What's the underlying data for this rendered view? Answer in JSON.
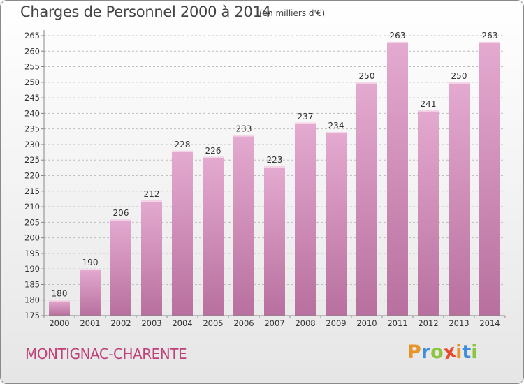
{
  "header": {
    "title": "Charges de Personnel 2000 à 2014",
    "subtitle": "(en milliers d'€)"
  },
  "footer": {
    "town": "MONTIGNAC-CHARENTE"
  },
  "logo": {
    "letters": [
      "P",
      "r",
      "o",
      "x",
      "i",
      "t",
      "i"
    ],
    "colors": [
      "#e8942a",
      "#3f8ede",
      "#8cc63e",
      "#e84a2e",
      "#e8942a",
      "#3f8ede",
      "#8cc63e"
    ]
  },
  "colors": {
    "bar": "#dc9cc4",
    "bar_dark": "#b8709e",
    "grid": "#bfbfbf",
    "town": "#c0407a"
  },
  "chart_data": {
    "type": "bar",
    "title": "Charges de Personnel 2000 à 2014",
    "subtitle": "(en milliers d'€)",
    "categories": [
      "2000",
      "2001",
      "2002",
      "2003",
      "2004",
      "2005",
      "2006",
      "2007",
      "2008",
      "2009",
      "2010",
      "2011",
      "2012",
      "2013",
      "2014"
    ],
    "values": [
      180,
      190,
      206,
      212,
      228,
      226,
      233,
      223,
      237,
      234,
      250,
      263,
      241,
      250,
      263
    ],
    "ylim": [
      175,
      265
    ],
    "yticks": [
      175,
      180,
      185,
      190,
      195,
      200,
      205,
      210,
      215,
      220,
      225,
      230,
      235,
      240,
      245,
      250,
      255,
      260,
      265
    ],
    "grid": true,
    "data_labels": true
  }
}
